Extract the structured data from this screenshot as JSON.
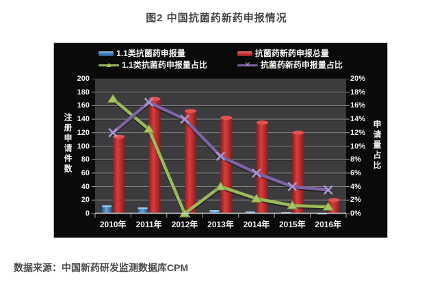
{
  "page": {
    "title": "图2 中国抗菌药新药申报情况",
    "source": "数据来源：中国新药研发监测数据库CPM"
  },
  "chart_data": {
    "type": "bar",
    "subtype": "bar-line-combo-dual-axis",
    "title": "图2 中国抗菌药新药申报情况",
    "categories": [
      "2010年",
      "2011年",
      "2012年",
      "2013年",
      "2014年",
      "2015年",
      "2016年"
    ],
    "series": [
      {
        "name": "1.1类抗菌药申报量",
        "type": "bar",
        "axis": "left",
        "color": "#4f8fd4",
        "values": [
          12,
          9,
          0,
          5,
          3,
          2,
          1
        ]
      },
      {
        "name": "抗菌药新药申报总量",
        "type": "bar",
        "axis": "left",
        "color": "#cf2f2f",
        "values": [
          114,
          170,
          152,
          142,
          135,
          120,
          20
        ]
      },
      {
        "name": "1.1类抗菌药申报量占比",
        "type": "line",
        "axis": "right",
        "color": "#9bbb59",
        "marker": "triangle",
        "values": [
          17,
          12.5,
          0,
          4,
          2.2,
          1.2,
          1
        ]
      },
      {
        "name": "抗菌药新药申报量占比",
        "type": "line",
        "axis": "right",
        "color": "#8064a2",
        "marker": "x",
        "values": [
          12,
          16.5,
          14,
          8.5,
          6,
          4,
          3.5
        ]
      }
    ],
    "left_axis": {
      "title": "注册申请件数",
      "min": 0,
      "max": 200,
      "step": 20
    },
    "right_axis": {
      "title": "申请量占比",
      "min": 0,
      "max": 20,
      "step": 2,
      "suffix": "%"
    },
    "legend_position": "top",
    "grid": "horizontal",
    "colors": {
      "panel_bg": "#0a0a0b",
      "plot_bg": "#3c3b3d",
      "grid": "#8f8f8f",
      "axis_text": "#f2f2f2",
      "title_text": "#454545"
    }
  }
}
